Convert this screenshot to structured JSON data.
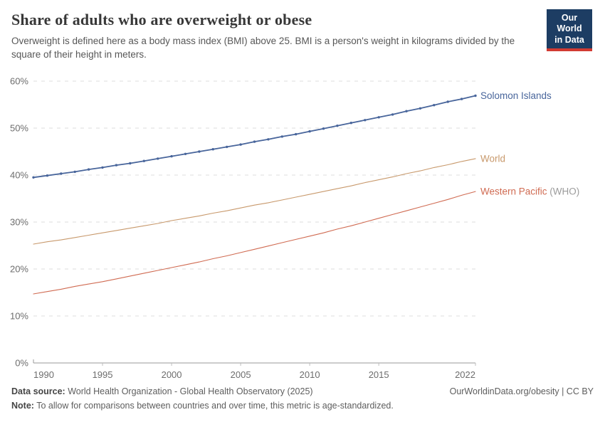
{
  "header": {
    "title": "Share of adults who are overweight or obese",
    "subtitle": "Overweight is defined here as a body mass index (BMI) above 25. BMI is a person's weight in kilograms divided by the square of their height in meters.",
    "logo": {
      "line1": "Our World",
      "line2": "in Data",
      "bg_color": "#1d3d63",
      "accent_color": "#d23b32"
    }
  },
  "chart_data": {
    "type": "line",
    "title": "Share of adults who are overweight or obese",
    "xlabel": "",
    "ylabel": "",
    "xlim": [
      1990,
      2022
    ],
    "ylim": [
      0,
      60
    ],
    "grid": "horizontal-dashed",
    "legend_position": "right-end-labels",
    "y_ticks": [
      0,
      10,
      20,
      30,
      40,
      50,
      60
    ],
    "y_tick_suffix": "%",
    "x_tick_labels": [
      1990,
      1995,
      2000,
      2005,
      2010,
      2015,
      2022
    ],
    "x": [
      1990,
      1991,
      1992,
      1993,
      1994,
      1995,
      1996,
      1997,
      1998,
      1999,
      2000,
      2001,
      2002,
      2003,
      2004,
      2005,
      2006,
      2007,
      2008,
      2009,
      2010,
      2011,
      2012,
      2013,
      2014,
      2015,
      2016,
      2017,
      2018,
      2019,
      2020,
      2021,
      2022
    ],
    "series": [
      {
        "name": "Solomon Islands",
        "label_suffix": "",
        "color": "#48659b",
        "markers": true,
        "line_width": 1.8,
        "values": [
          39.5,
          39.9,
          40.3,
          40.7,
          41.2,
          41.6,
          42.1,
          42.5,
          43.0,
          43.5,
          44.0,
          44.5,
          45.0,
          45.5,
          46.0,
          46.5,
          47.1,
          47.6,
          48.2,
          48.7,
          49.3,
          49.9,
          50.5,
          51.1,
          51.7,
          52.3,
          52.9,
          53.6,
          54.2,
          54.9,
          55.6,
          56.2,
          56.9
        ]
      },
      {
        "name": "World",
        "label_suffix": "",
        "color": "#c8996c",
        "markers": false,
        "line_width": 1.1,
        "values": [
          25.3,
          25.8,
          26.2,
          26.7,
          27.2,
          27.7,
          28.2,
          28.7,
          29.2,
          29.7,
          30.3,
          30.8,
          31.3,
          31.9,
          32.4,
          33.0,
          33.6,
          34.1,
          34.7,
          35.3,
          35.9,
          36.5,
          37.1,
          37.7,
          38.4,
          39.0,
          39.6,
          40.3,
          40.9,
          41.6,
          42.2,
          42.9,
          43.5
        ]
      },
      {
        "name": "Western Pacific",
        "label_suffix": " (WHO)",
        "color": "#d06b52",
        "markers": false,
        "line_width": 1.1,
        "values": [
          14.7,
          15.2,
          15.7,
          16.3,
          16.8,
          17.3,
          17.9,
          18.5,
          19.1,
          19.7,
          20.3,
          20.9,
          21.5,
          22.2,
          22.8,
          23.5,
          24.2,
          24.9,
          25.6,
          26.3,
          27.0,
          27.7,
          28.5,
          29.2,
          30.0,
          30.8,
          31.6,
          32.4,
          33.2,
          34.0,
          34.8,
          35.7,
          36.5
        ]
      }
    ],
    "grid_color": "#dcdcdc",
    "axis_color": "#9a9a9a",
    "tick_color": "#bdbdbd",
    "tick_label_color": "#6d6d6d",
    "suffix_label_color": "#9b9b9b"
  },
  "footer": {
    "datasource_label": "Data source:",
    "datasource_text": " World Health Organization - Global Health Observatory (2025)",
    "link_text": "OurWorldinData.org/obesity | CC BY",
    "note_label": "Note:",
    "note_text": " To allow for comparisons between countries and over time, this metric is age-standardized."
  }
}
